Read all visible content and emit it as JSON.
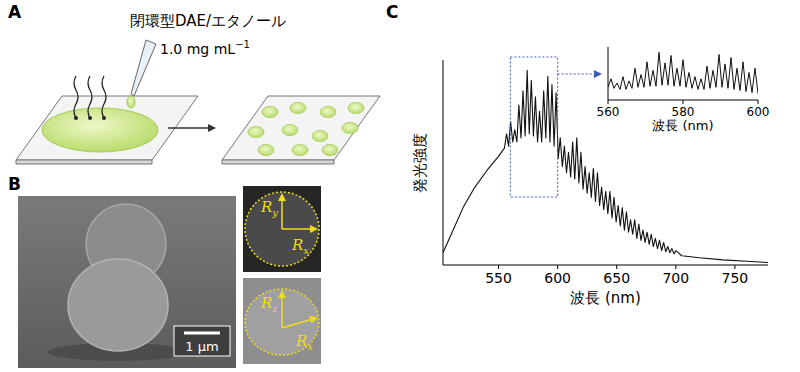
{
  "panels": [
    {
      "label": "A",
      "solution": "閉環型DAE/エタノール",
      "concentration": {
        "text": "1.0 mg mL",
        "exponent": "−1"
      }
    },
    {
      "label": "B",
      "scale_bar": "1 μm",
      "top_image": {
        "axes": [
          {
            "symbol": "R",
            "subscript": "y"
          },
          {
            "symbol": "R",
            "subscript": "x"
          }
        ]
      },
      "bottom_image": {
        "axes": [
          {
            "symbol": "R",
            "subscript": "z"
          },
          {
            "symbol": "R",
            "subscript": "x"
          }
        ]
      }
    },
    {
      "label": "C"
    }
  ],
  "chart_data": [
    {
      "type": "line",
      "xlabel": "波長 (nm)",
      "ylabel": "発光強度",
      "color": "#111111",
      "grid": false,
      "tick_labels": "x",
      "xlim": [
        503,
        778
      ],
      "xticks": [
        550,
        600,
        650,
        700,
        750
      ],
      "ylim": [
        0,
        1
      ],
      "x": [
        503,
        510,
        520,
        530,
        540,
        550,
        555,
        556.8,
        558.5,
        560.2,
        562,
        563.7,
        565.5,
        567.2,
        569,
        570.7,
        572.5,
        574.2,
        576,
        577.7,
        579.5,
        581.2,
        583,
        584.7,
        586.5,
        588.2,
        590,
        591.7,
        593.5,
        595.2,
        597,
        598.7,
        600.5,
        602.2,
        604,
        605.7,
        607.5,
        609.2,
        611,
        612.7,
        614.5,
        616.2,
        618,
        619.7,
        621.5,
        623.2,
        625,
        626.7,
        628.5,
        630.2,
        632,
        633.7,
        635.5,
        637.2,
        639,
        640.7,
        642.5,
        644.2,
        646,
        647.7,
        649.5,
        651.2,
        653,
        654.7,
        656.5,
        658.2,
        660,
        661.7,
        663.5,
        665.2,
        667,
        668.7,
        670.5,
        672.2,
        674,
        675.7,
        677.5,
        679.2,
        681,
        682.7,
        684.5,
        686.2,
        688,
        689.7,
        691.5,
        693.2,
        695,
        696.7,
        698.5,
        700.2,
        705,
        720,
        740,
        760,
        778
      ],
      "values": [
        0.06,
        0.15,
        0.28,
        0.38,
        0.46,
        0.53,
        0.57,
        0.64,
        0.58,
        0.7,
        0.6,
        0.66,
        0.6,
        0.78,
        0.62,
        0.85,
        0.63,
        0.95,
        0.64,
        0.9,
        0.63,
        0.82,
        0.6,
        0.75,
        0.6,
        0.85,
        0.62,
        0.92,
        0.6,
        0.88,
        0.58,
        0.84,
        0.52,
        0.62,
        0.48,
        0.58,
        0.45,
        0.55,
        0.43,
        0.6,
        0.42,
        0.62,
        0.4,
        0.55,
        0.37,
        0.48,
        0.35,
        0.45,
        0.33,
        0.47,
        0.31,
        0.45,
        0.29,
        0.38,
        0.27,
        0.36,
        0.25,
        0.36,
        0.23,
        0.33,
        0.21,
        0.29,
        0.19,
        0.28,
        0.17,
        0.26,
        0.16,
        0.22,
        0.15,
        0.22,
        0.13,
        0.2,
        0.12,
        0.17,
        0.11,
        0.16,
        0.1,
        0.15,
        0.09,
        0.13,
        0.08,
        0.12,
        0.07,
        0.11,
        0.065,
        0.09,
        0.06,
        0.08,
        0.055,
        0.07,
        0.045,
        0.035,
        0.025,
        0.018,
        0.012
      ]
    },
    {
      "type": "line",
      "xlabel": "波長 (nm)",
      "color": "#111111",
      "grid": false,
      "tick_labels": "x",
      "xlim": [
        560,
        600
      ],
      "xticks": [
        560,
        580,
        600
      ],
      "ylim": [
        0.5,
        1
      ],
      "x": [
        560,
        560.8,
        561.6,
        562.4,
        563.2,
        564,
        564.8,
        565.6,
        566.4,
        567.2,
        568,
        568.8,
        569.6,
        570.4,
        571.2,
        572,
        572.8,
        573.6,
        574.4,
        575.2,
        576,
        576.8,
        577.6,
        578.4,
        579.2,
        580,
        580.8,
        581.6,
        582.4,
        583.2,
        584,
        584.8,
        585.6,
        586.4,
        587.2,
        588,
        588.8,
        589.6,
        590.4,
        591.2,
        592,
        592.8,
        593.6,
        594.4,
        595.2,
        596,
        596.8,
        597.6,
        598.4,
        599.2,
        600
      ],
      "values": [
        0.62,
        0.7,
        0.61,
        0.66,
        0.6,
        0.72,
        0.6,
        0.68,
        0.61,
        0.8,
        0.62,
        0.74,
        0.62,
        0.86,
        0.63,
        0.78,
        0.63,
        0.95,
        0.64,
        0.85,
        0.64,
        0.92,
        0.63,
        0.8,
        0.63,
        0.88,
        0.62,
        0.76,
        0.61,
        0.72,
        0.6,
        0.7,
        0.6,
        0.82,
        0.61,
        0.78,
        0.62,
        0.93,
        0.62,
        0.84,
        0.61,
        0.9,
        0.6,
        0.8,
        0.59,
        0.86,
        0.58,
        0.76,
        0.57,
        0.8,
        0.56
      ]
    }
  ]
}
